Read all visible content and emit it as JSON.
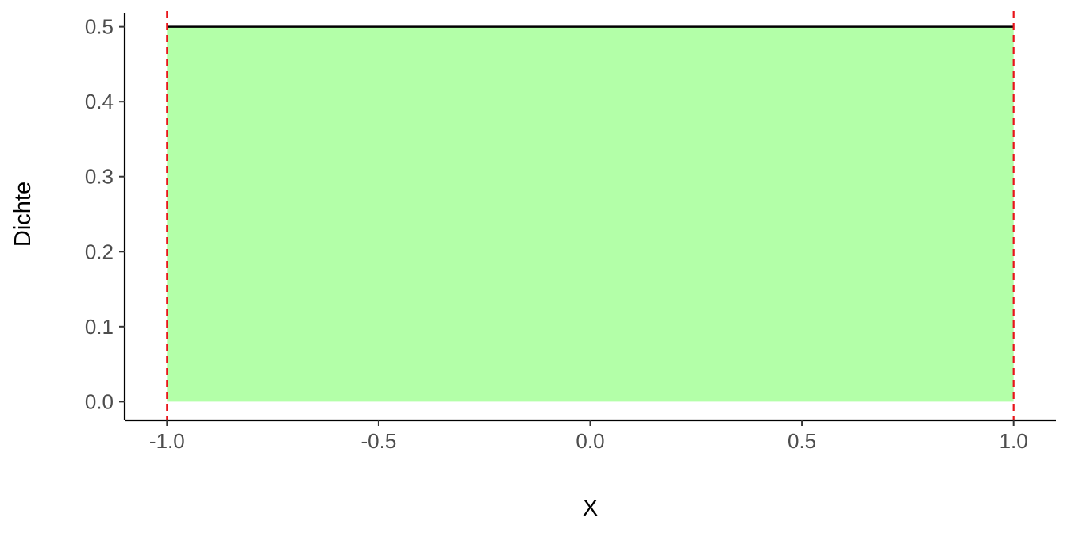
{
  "chart_data": {
    "type": "area",
    "title": "",
    "xlabel": "X",
    "ylabel": "Dichte",
    "xlim": [
      -1.1,
      1.1
    ],
    "ylim": [
      -0.025,
      0.525
    ],
    "x_ticks": [
      {
        "value": -1.0,
        "label": "-1.0"
      },
      {
        "value": -0.5,
        "label": "-0.5"
      },
      {
        "value": 0.0,
        "label": "0.0"
      },
      {
        "value": 0.5,
        "label": "0.5"
      },
      {
        "value": 1.0,
        "label": "1.0"
      }
    ],
    "y_ticks": [
      {
        "value": 0.0,
        "label": "0.0"
      },
      {
        "value": 0.1,
        "label": "0.1"
      },
      {
        "value": 0.2,
        "label": "0.2"
      },
      {
        "value": 0.3,
        "label": "0.3"
      },
      {
        "value": 0.4,
        "label": "0.4"
      },
      {
        "value": 0.5,
        "label": "0.5"
      }
    ],
    "density_line": {
      "x": [
        -1.0,
        1.0
      ],
      "y": [
        0.5,
        0.5
      ],
      "color": "#000000"
    },
    "shaded_area": {
      "x": [
        -1.0,
        1.0
      ],
      "y": [
        0.5,
        0.5
      ],
      "baseline": 0.0,
      "color": "#b3ffa8"
    },
    "reference_lines": [
      {
        "x": -1.0,
        "color": "#e8141a",
        "style": "dashed"
      },
      {
        "x": 1.0,
        "color": "#e8141a",
        "style": "dashed"
      }
    ],
    "grid": false,
    "legend": "none"
  }
}
